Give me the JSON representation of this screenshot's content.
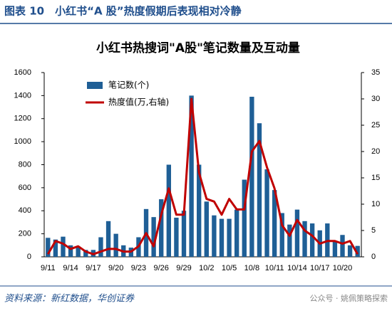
{
  "header": "图表 10　小红书“A 股”热度假期后表现相对冷静",
  "chart_data": {
    "type": "bar-line",
    "title": "小红书热搜词\"A股\"笔记数量及互动量",
    "categories": [
      "9/11",
      null,
      null,
      "9/14",
      null,
      null,
      "9/17",
      null,
      null,
      "9/20",
      null,
      null,
      "9/23",
      null,
      null,
      "9/26",
      null,
      null,
      "9/29",
      null,
      null,
      "10/2",
      null,
      null,
      "10/5",
      null,
      null,
      "10/8",
      null,
      null,
      "10/11",
      null,
      null,
      "10/14",
      null,
      null,
      "10/17",
      null,
      null,
      "10/20",
      null,
      null
    ],
    "series": [
      {
        "name": "笔记数(个)",
        "type": "bar",
        "color": "#1f5f96",
        "values": [
          165,
          150,
          175,
          100,
          90,
          60,
          60,
          170,
          310,
          200,
          100,
          80,
          170,
          415,
          345,
          500,
          800,
          340,
          400,
          1400,
          800,
          480,
          360,
          330,
          330,
          410,
          670,
          1390,
          1160,
          760,
          580,
          380,
          280,
          410,
          310,
          290,
          230,
          290,
          130,
          190,
          100,
          95
        ]
      },
      {
        "name": "热度值(万,右轴)",
        "type": "line",
        "axis": "y2",
        "color": "#c00000",
        "values": [
          0.5,
          3,
          2.5,
          1.5,
          2,
          1,
          0.5,
          1,
          1.5,
          1.5,
          1,
          1,
          2,
          4.5,
          2,
          8,
          13,
          8,
          8,
          30,
          16,
          11,
          10.5,
          8,
          11,
          9,
          9,
          20,
          22,
          17,
          13,
          6,
          4,
          7,
          5,
          4,
          2.5,
          3,
          3,
          2.5,
          3,
          0.5
        ]
      }
    ],
    "ylim": [
      0,
      1600
    ],
    "yticks": [
      0,
      200,
      400,
      600,
      800,
      1000,
      1200,
      1400,
      1600
    ],
    "y2lim": [
      0,
      35
    ],
    "y2ticks": [
      0,
      5,
      10,
      15,
      20,
      25,
      30,
      35
    ]
  },
  "source": "资料来源：新红数据，华创证券",
  "watermark": "公众号 · 姚佩策略探索"
}
